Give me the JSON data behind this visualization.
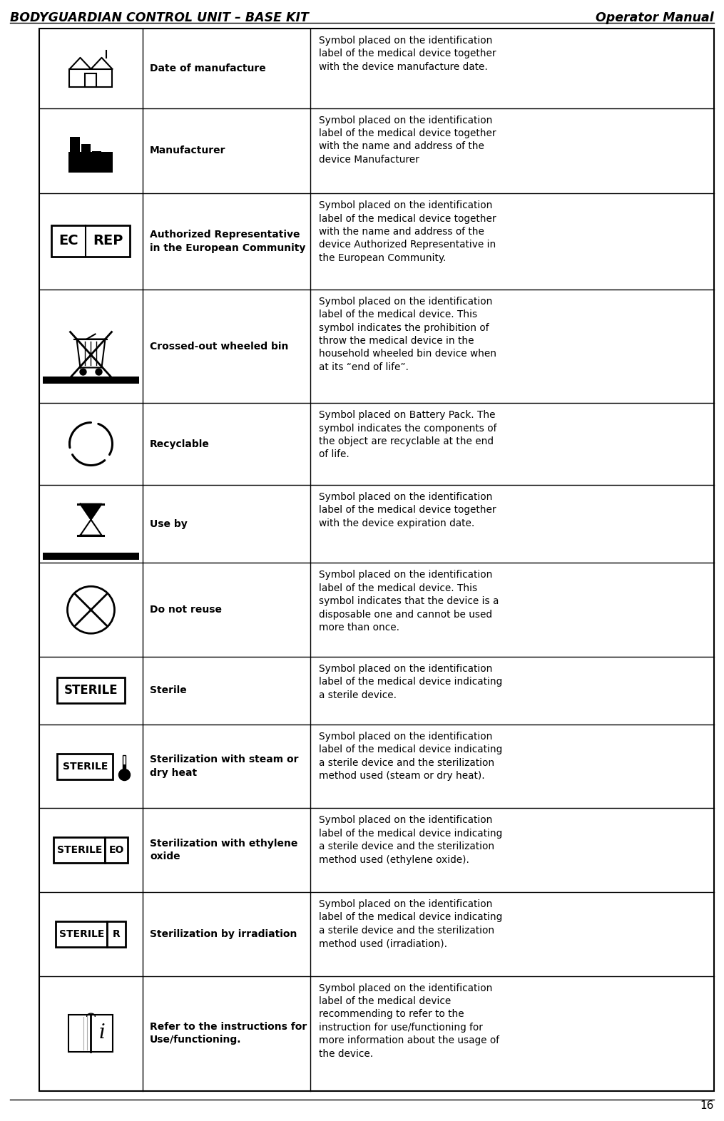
{
  "title_left": "BODYGUARDIAN CONTROL UNIT – BASE KIT",
  "title_right": "Operator Manual",
  "page_number": "16",
  "bg_color": "#ffffff",
  "rows": [
    {
      "symbol_type": "manufacture_date",
      "label": "Date of manufacture",
      "description": "Symbol placed on the identification\nlabel of the medical device together\nwith the device manufacture date."
    },
    {
      "symbol_type": "manufacturer",
      "label": "Manufacturer",
      "description": "Symbol placed on the identification\nlabel of the medical device together\nwith the name and address of the\ndevice Manufacturer"
    },
    {
      "symbol_type": "ec_rep",
      "label": "Authorized Representative\nin the European Community",
      "description": "Symbol placed on the identification\nlabel of the medical device together\nwith the name and address of the\ndevice Authorized Representative in\nthe European Community."
    },
    {
      "symbol_type": "crossed_bin",
      "label": "Crossed-out wheeled bin",
      "description": "Symbol placed on the identification\nlabel of the medical device. This\nsymbol indicates the prohibition of\nthrow the medical device in the\nhousehold wheeled bin device when\nat its “end of life”."
    },
    {
      "symbol_type": "recyclable",
      "label": "Recyclable",
      "description": "Symbol placed on Battery Pack. The\nsymbol indicates the components of\nthe object are recyclable at the end\nof life."
    },
    {
      "symbol_type": "use_by",
      "label": "Use by",
      "description": "Symbol placed on the identification\nlabel of the medical device together\nwith the device expiration date."
    },
    {
      "symbol_type": "do_not_reuse",
      "label": "Do not reuse",
      "description": "Symbol placed on the identification\nlabel of the medical device. This\nsymbol indicates that the device is a\ndisposable one and cannot be used\nmore than once."
    },
    {
      "symbol_type": "sterile",
      "label": "Sterile",
      "description": "Symbol placed on the identification\nlabel of the medical device indicating\na sterile device."
    },
    {
      "symbol_type": "sterile_steam",
      "label": "Sterilization with steam or\ndry heat",
      "description": "Symbol placed on the identification\nlabel of the medical device indicating\na sterile device and the sterilization\nmethod used (steam or dry heat)."
    },
    {
      "symbol_type": "sterile_eo",
      "label": "Sterilization with ethylene\noxide",
      "description": "Symbol placed on the identification\nlabel of the medical device indicating\na sterile device and the sterilization\nmethod used (ethylene oxide)."
    },
    {
      "symbol_type": "sterile_r",
      "label": "Sterilization by irradiation",
      "description": "Symbol placed on the identification\nlabel of the medical device indicating\na sterile device and the sterilization\nmethod used (irradiation)."
    },
    {
      "symbol_type": "refer_instructions",
      "label": "Refer to the instructions for\nUse/functioning.",
      "description": "Symbol placed on the identification\nlabel of the medical device\nrecommending to refer to the\ninstruction for use/functioning for\nmore information about the usage of\nthe device."
    }
  ]
}
